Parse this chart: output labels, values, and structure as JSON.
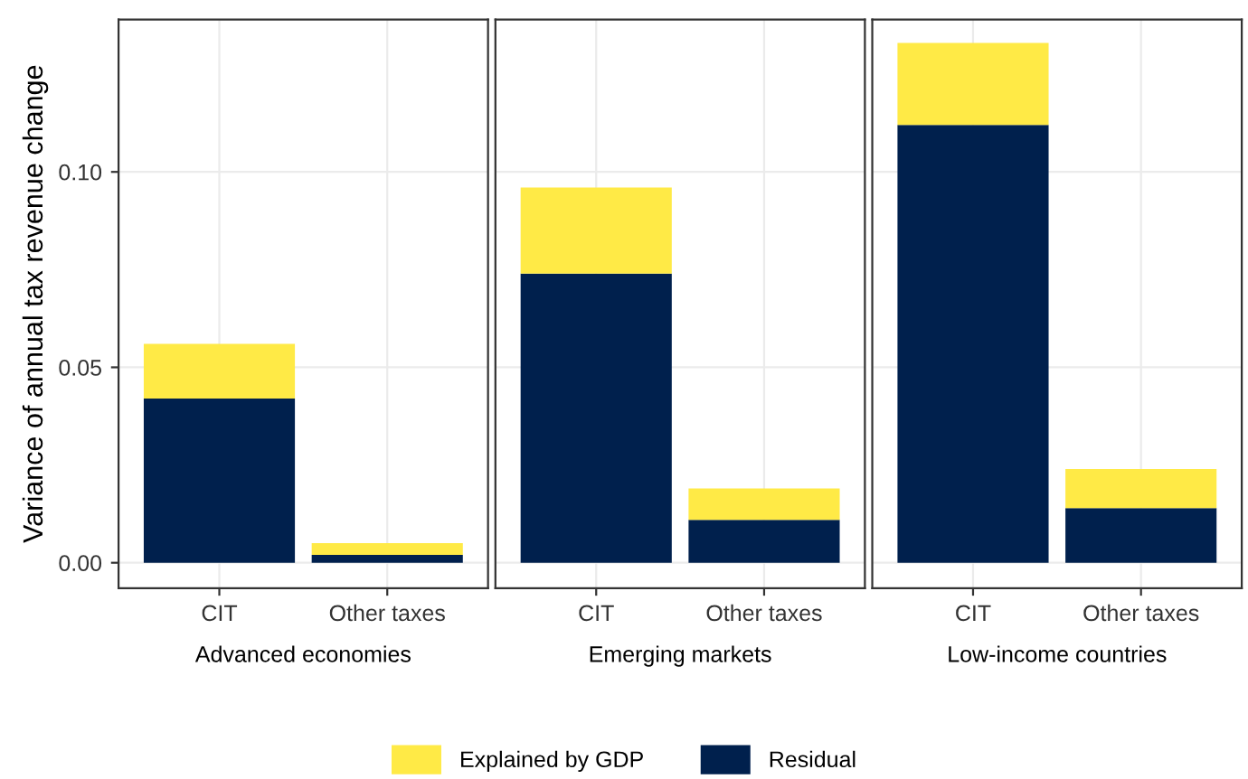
{
  "chart_data": [
    {
      "type": "bar",
      "stacked": true,
      "xlabel": "Advanced economies",
      "ylabel": "Variance of annual tax revenue change",
      "categories": [
        "CIT",
        "Other taxes"
      ],
      "series": [
        {
          "name": "Residual",
          "color": "#00204d",
          "values": [
            0.042,
            0.002
          ]
        },
        {
          "name": "Explained by GDP",
          "color": "#ffea46",
          "values": [
            0.014,
            0.003
          ]
        }
      ],
      "ylim": [
        -0.0065,
        0.139
      ],
      "yticks": [
        {
          "value": 0,
          "label": "0.00"
        },
        {
          "value": 0.05,
          "label": "0.05"
        },
        {
          "value": 0.1,
          "label": "0.10"
        }
      ],
      "grid": true,
      "legend": "bottom"
    },
    {
      "type": "bar",
      "stacked": true,
      "xlabel": "Emerging markets",
      "categories": [
        "CIT",
        "Other taxes"
      ],
      "series": [
        {
          "color": "#00204d",
          "values": [
            0.074,
            0.011
          ]
        },
        {
          "color": "#ffea46",
          "values": [
            0.022,
            0.008
          ]
        }
      ],
      "ylim": [
        -0.0065,
        0.139
      ],
      "grid": true,
      "tick_labels": "x"
    },
    {
      "type": "bar",
      "stacked": true,
      "xlabel": "Low-income countries",
      "categories": [
        "CIT",
        "Other taxes"
      ],
      "series": [
        {
          "color": "#00204d",
          "values": [
            0.112,
            0.014
          ]
        },
        {
          "color": "#ffea46",
          "values": [
            0.021,
            0.01
          ]
        }
      ],
      "ylim": [
        -0.0065,
        0.139
      ],
      "grid": true,
      "tick_labels": "x"
    }
  ]
}
